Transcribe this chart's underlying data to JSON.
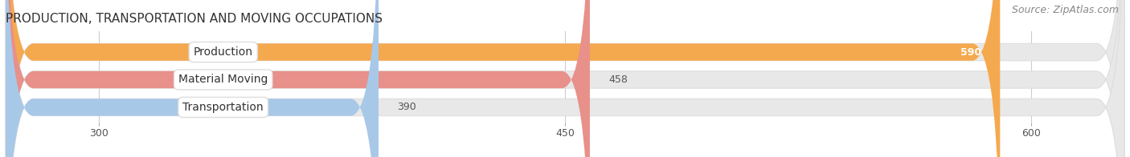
{
  "title": "PRODUCTION, TRANSPORTATION AND MOVING OCCUPATIONS",
  "source": "Source: ZipAtlas.com",
  "categories": [
    "Production",
    "Material Moving",
    "Transportation"
  ],
  "values": [
    590,
    458,
    390
  ],
  "bar_colors": [
    "#F5A94E",
    "#E8908A",
    "#A8C8E8"
  ],
  "xlim_min": 270,
  "xlim_max": 630,
  "xticks": [
    300,
    450,
    600
  ],
  "label_fontsize": 10,
  "value_fontsize": 9,
  "title_fontsize": 11,
  "source_fontsize": 9,
  "background_color": "#ffffff",
  "bar_bg_color": "#e8e8e8",
  "value_in_bar_threshold": 560
}
